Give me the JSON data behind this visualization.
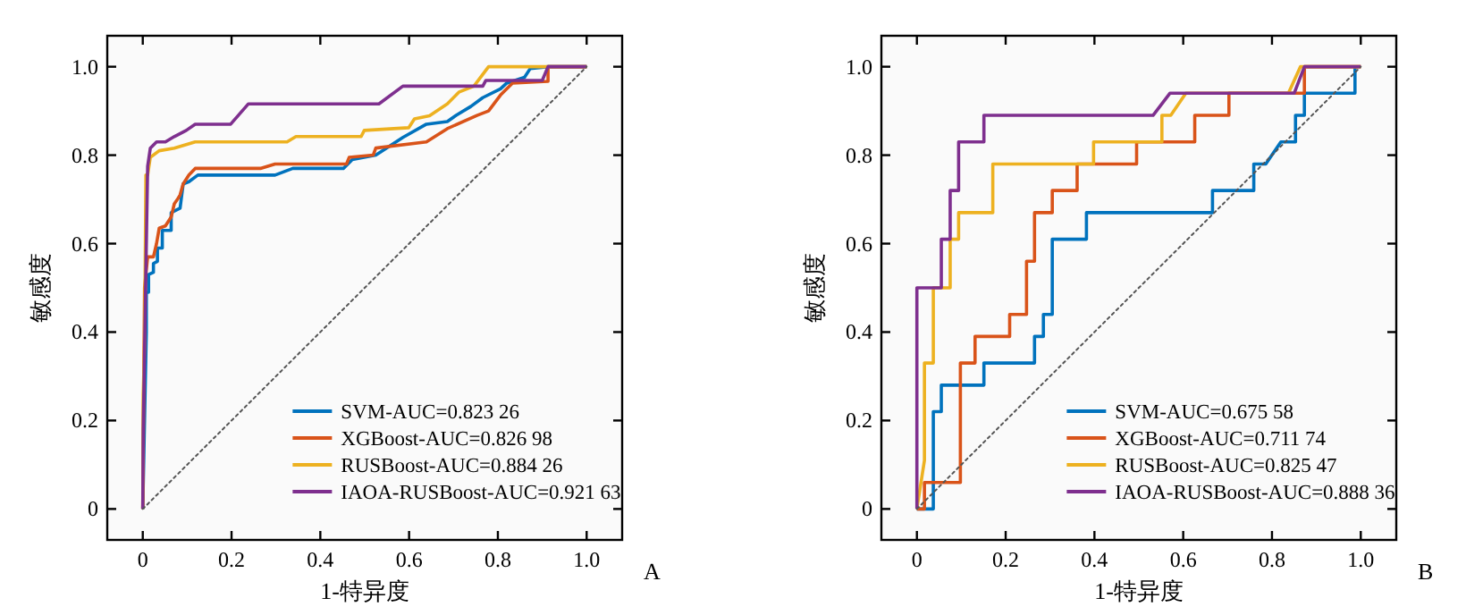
{
  "chart_data": [
    {
      "type": "line",
      "xlabel": "1-特异度",
      "ylabel": "敏感度",
      "xlim": [
        -0.08,
        1.08
      ],
      "ylim": [
        -0.07,
        1.07
      ],
      "xticks": [
        0,
        0.2,
        0.4,
        0.6,
        0.8,
        {
          "value": 1,
          "label": "1.0"
        }
      ],
      "yticks": [
        0,
        0.2,
        0.4,
        0.6,
        0.8,
        {
          "value": 1,
          "label": "1.0"
        }
      ],
      "legend": "bottom right",
      "annotations": [
        "A"
      ],
      "series": [
        {
          "name": "SVM-AUC=0.823 26",
          "color": "#0072bd",
          "x": [
            0,
            0.008,
            0.008,
            0.013,
            0.013,
            0.024,
            0.024,
            0.033,
            0.033,
            0.044,
            0.044,
            0.064,
            0.064,
            0.084,
            0.091,
            0.104,
            0.124,
            0.298,
            0.338,
            0.452,
            0.472,
            0.525,
            0.586,
            0.639,
            0.686,
            0.706,
            0.739,
            0.766,
            0.806,
            0.82,
            0.86,
            0.873,
            0.913,
            1
          ],
          "values": [
            0,
            0.4,
            0.49,
            0.49,
            0.53,
            0.535,
            0.555,
            0.56,
            0.59,
            0.59,
            0.63,
            0.63,
            0.67,
            0.68,
            0.735,
            0.74,
            0.755,
            0.755,
            0.77,
            0.77,
            0.79,
            0.8,
            0.84,
            0.87,
            0.876,
            0.89,
            0.91,
            0.93,
            0.95,
            0.963,
            0.976,
            0.996,
            1,
            1
          ]
        },
        {
          "name": "XGBoost-AUC=0.826 98",
          "color": "#d95319",
          "x": [
            0,
            0.004,
            0.011,
            0.024,
            0.031,
            0.037,
            0.051,
            0.064,
            0.071,
            0.078,
            0.084,
            0.091,
            0.104,
            0.118,
            0.265,
            0.298,
            0.459,
            0.465,
            0.519,
            0.525,
            0.639,
            0.686,
            0.753,
            0.779,
            0.806,
            0.833,
            0.913,
            0.913,
            1
          ],
          "values": [
            0,
            0.5,
            0.57,
            0.57,
            0.6,
            0.635,
            0.64,
            0.66,
            0.69,
            0.7,
            0.71,
            0.735,
            0.755,
            0.77,
            0.77,
            0.78,
            0.78,
            0.795,
            0.8,
            0.816,
            0.83,
            0.86,
            0.89,
            0.9,
            0.936,
            0.963,
            0.967,
            1,
            1
          ]
        },
        {
          "name": "RUSBoost-AUC=0.884 26",
          "color": "#edb120",
          "x": [
            0,
            0.001,
            0.004,
            0.007,
            0.011,
            0.017,
            0.037,
            0.071,
            0.118,
            0.325,
            0.345,
            0.492,
            0.499,
            0.599,
            0.612,
            0.646,
            0.686,
            0.713,
            0.746,
            0.779,
            1
          ],
          "values": [
            0,
            0.26,
            0.37,
            0.755,
            0.755,
            0.795,
            0.81,
            0.816,
            0.83,
            0.83,
            0.842,
            0.842,
            0.856,
            0.862,
            0.882,
            0.889,
            0.916,
            0.943,
            0.956,
            1,
            1
          ]
        },
        {
          "name": "IAOA-RUSBoost-AUC=0.921 63",
          "color": "#7e2f8e",
          "x": [
            0,
            0.001,
            0.011,
            0.017,
            0.031,
            0.051,
            0.071,
            0.098,
            0.118,
            0.198,
            0.238,
            0.532,
            0.586,
            0.766,
            0.773,
            0.9,
            0.913,
            1
          ],
          "values": [
            0,
            0.18,
            0.775,
            0.816,
            0.83,
            0.83,
            0.842,
            0.856,
            0.87,
            0.87,
            0.916,
            0.916,
            0.956,
            0.956,
            0.969,
            0.969,
            1,
            1
          ]
        },
        {
          "color": "#555555",
          "line_style": "dotted",
          "x": [
            0,
            1
          ],
          "values": [
            0,
            1
          ]
        }
      ]
    },
    {
      "type": "line",
      "xlabel": "1-特异度",
      "ylabel": "敏感度",
      "xlim": [
        -0.08,
        1.08
      ],
      "ylim": [
        -0.07,
        1.07
      ],
      "xticks": [
        0,
        0.2,
        0.4,
        0.6,
        0.8,
        {
          "value": 1,
          "label": "1.0"
        }
      ],
      "yticks": [
        0,
        0.2,
        0.4,
        0.6,
        0.8,
        {
          "value": 1,
          "label": "1.0"
        }
      ],
      "legend": "bottom right",
      "annotations": [
        "B"
      ],
      "series": [
        {
          "name": "SVM-AUC=0.675 58",
          "color": "#0072bd",
          "x": [
            0,
            0.037,
            0.037,
            0.055,
            0.055,
            0.151,
            0.151,
            0.265,
            0.265,
            0.285,
            0.285,
            0.305,
            0.305,
            0.382,
            0.382,
            0.666,
            0.666,
            0.759,
            0.759,
            0.786,
            0.82,
            0.853,
            0.853,
            0.873,
            0.873,
            0.987,
            0.987
          ],
          "values": [
            0,
            0,
            0.22,
            0.22,
            0.28,
            0.28,
            0.33,
            0.33,
            0.39,
            0.39,
            0.44,
            0.44,
            0.61,
            0.61,
            0.67,
            0.67,
            0.72,
            0.72,
            0.78,
            0.78,
            0.83,
            0.83,
            0.89,
            0.89,
            0.94,
            0.94,
            1
          ]
        },
        {
          "name": "XGBoost-AUC=0.711 74",
          "color": "#d95319",
          "x": [
            0,
            0.017,
            0.017,
            0.098,
            0.098,
            0.131,
            0.131,
            0.209,
            0.209,
            0.247,
            0.247,
            0.265,
            0.265,
            0.305,
            0.305,
            0.361,
            0.361,
            0.495,
            0.495,
            0.626,
            0.626,
            0.703,
            0.703,
            0.873,
            0.873,
            1
          ],
          "values": [
            0,
            0,
            0.06,
            0.06,
            0.33,
            0.33,
            0.39,
            0.39,
            0.44,
            0.44,
            0.56,
            0.56,
            0.67,
            0.67,
            0.72,
            0.72,
            0.78,
            0.78,
            0.83,
            0.83,
            0.89,
            0.89,
            0.94,
            0.94,
            1,
            1
          ]
        },
        {
          "name": "RUSBoost-AUC=0.825 47",
          "color": "#edb120",
          "x": [
            0,
            0.017,
            0.017,
            0.037,
            0.037,
            0.075,
            0.075,
            0.094,
            0.094,
            0.171,
            0.171,
            0.398,
            0.398,
            0.552,
            0.552,
            0.572,
            0.606,
            0.837,
            0.864,
            1
          ],
          "values": [
            0,
            0.11,
            0.33,
            0.33,
            0.5,
            0.5,
            0.61,
            0.61,
            0.67,
            0.67,
            0.78,
            0.78,
            0.83,
            0.83,
            0.89,
            0.89,
            0.94,
            0.94,
            1,
            1
          ]
        },
        {
          "name": "IAOA-RUSBoost-AUC=0.888 36",
          "color": "#7e2f8e",
          "x": [
            0,
            0,
            0.055,
            0.055,
            0.075,
            0.075,
            0.094,
            0.094,
            0.151,
            0.151,
            0.532,
            0.57,
            0.85,
            0.873,
            1
          ],
          "values": [
            0,
            0.5,
            0.5,
            0.61,
            0.61,
            0.72,
            0.72,
            0.83,
            0.83,
            0.89,
            0.89,
            0.94,
            0.94,
            1,
            1
          ]
        },
        {
          "color": "#555555",
          "line_style": "dotted",
          "x": [
            0,
            1
          ],
          "values": [
            0,
            1
          ]
        }
      ]
    }
  ]
}
